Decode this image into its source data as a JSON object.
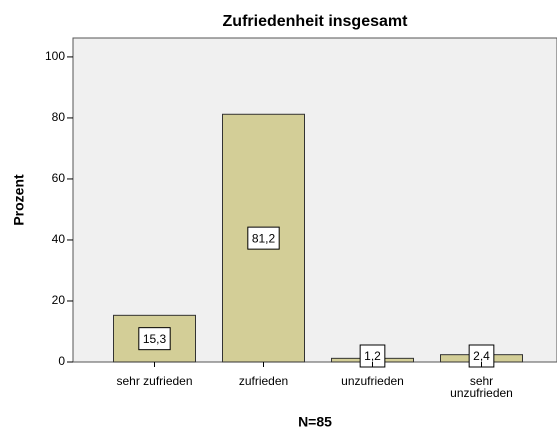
{
  "chart_data": {
    "type": "bar",
    "title": "Zufriedenheit insgesamt",
    "categories": [
      "sehr zufrieden",
      "zufrieden",
      "unzufrieden",
      "sehr unzufrieden"
    ],
    "values": [
      15.3,
      81.2,
      1.2,
      2.4
    ],
    "value_labels": [
      "15,3",
      "81,2",
      "1,2",
      "2,4"
    ],
    "color": "#d3ce97",
    "y_label": "Prozent",
    "x_label": "N=85",
    "ylim": [
      0,
      106.2
    ],
    "yticks": [
      0,
      20,
      40,
      60,
      80,
      100
    ]
  }
}
